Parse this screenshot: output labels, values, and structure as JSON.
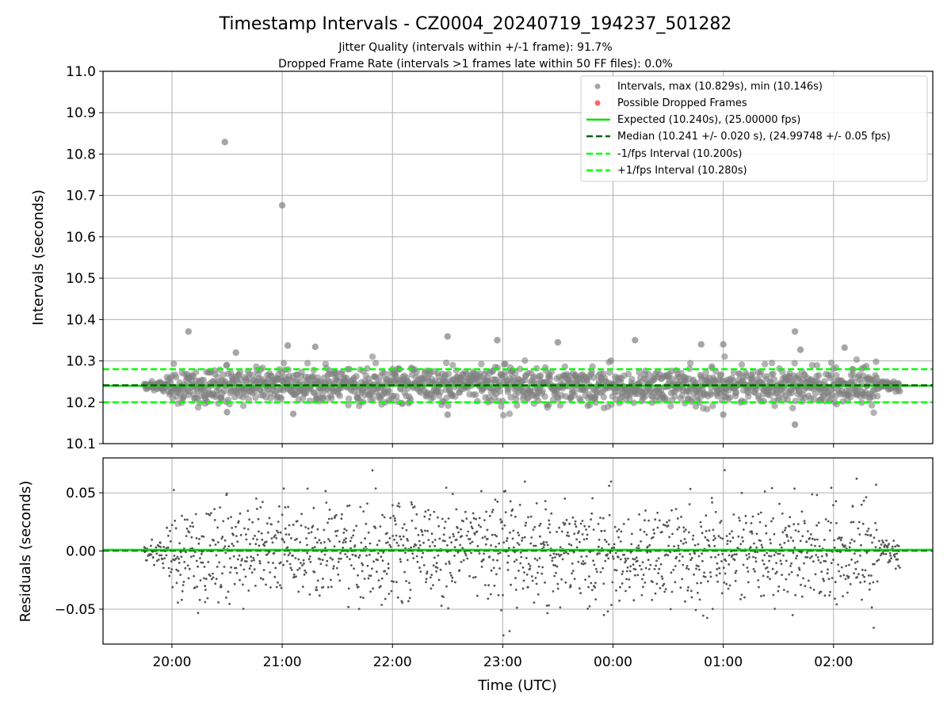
{
  "chart_data": [
    {
      "type": "scatter",
      "title": "Timestamp Intervals - CZ0004_20240719_194237_501282",
      "subtitle_lines": [
        "Jitter Quality (intervals within +/-1 frame): 91.7%",
        "Dropped Frame Rate (intervals >1 frames late within 50 FF files): 0.0%"
      ],
      "ylabel": "Intervals (seconds)",
      "ylim": [
        10.1,
        11.0
      ],
      "yticks": [
        "10.1",
        "10.2",
        "10.3",
        "10.4",
        "10.5",
        "10.6",
        "10.7",
        "10.8",
        "10.9",
        "11.0"
      ],
      "grid": true,
      "legend_position": "top-right",
      "legend": [
        {
          "label": "Intervals, max (10.829s), min (10.146s)",
          "kind": "marker",
          "color": "#808080"
        },
        {
          "label": "Possible Dropped Frames",
          "kind": "marker",
          "color": "#ff0000"
        },
        {
          "label": "Expected (10.240s), (25.00000 fps)",
          "kind": "solid",
          "color": "#00e000"
        },
        {
          "label": "Median (10.241 +/- 0.020 s), (24.99748 +/- 0.05 fps)",
          "kind": "dashed",
          "color": "#006400"
        },
        {
          "label": "-1/fps Interval (10.200s)",
          "kind": "dashed",
          "color": "#00ff00"
        },
        {
          "label": "+1/fps Interval (10.280s)",
          "kind": "dashed",
          "color": "#00ff00"
        }
      ],
      "reference_lines": {
        "expected": 10.24,
        "median": 10.241,
        "minus_one_fps": 10.2,
        "plus_one_fps": 10.28
      },
      "time_range_hours": [
        19.75,
        26.6
      ],
      "series": [
        {
          "name": "Intervals, max (10.829s), min (10.146s)",
          "color": "#808080",
          "points_note": "dense band around 10.24 s",
          "outliers": [
            [
              20.48,
              10.829
            ],
            [
              21.0,
              10.676
            ],
            [
              20.15,
              10.371
            ],
            [
              22.5,
              10.359
            ],
            [
              22.95,
              10.35
            ],
            [
              24.2,
              10.35
            ],
            [
              25.65,
              10.371
            ],
            [
              25.0,
              10.34
            ],
            [
              24.8,
              10.34
            ],
            [
              21.05,
              10.337
            ],
            [
              21.3,
              10.334
            ],
            [
              26.1,
              10.332
            ],
            [
              20.58,
              10.32
            ],
            [
              25.7,
              10.327
            ],
            [
              23.5,
              10.345
            ],
            [
              25.65,
              10.146
            ],
            [
              25.0,
              10.17
            ],
            [
              20.5,
              10.176
            ],
            [
              21.1,
              10.172
            ],
            [
              22.5,
              10.17
            ]
          ]
        },
        {
          "name": "Possible Dropped Frames",
          "color": "#ff0000",
          "values": []
        }
      ]
    },
    {
      "type": "scatter",
      "ylabel": "Residuals (seconds)",
      "xlabel": "Time (UTC)",
      "ylim": [
        -0.08,
        0.08
      ],
      "yticks": [
        "−0.05",
        "0.00",
        "0.05"
      ],
      "xticks": [
        "20:00",
        "21:00",
        "22:00",
        "23:00",
        "00:00",
        "01:00",
        "02:00"
      ],
      "grid": true,
      "zero_line_color": "#00e000",
      "series": [
        {
          "name": "Residuals",
          "color": "#555555",
          "points_note": "residuals spread within about +/-0.08 s"
        }
      ]
    }
  ],
  "colors": {
    "points": "#808080",
    "dropped": "#ff0000",
    "expected": "#00e000",
    "median": "#006400",
    "fps_band": "#00ff00",
    "grid": "#b0b0b0"
  }
}
